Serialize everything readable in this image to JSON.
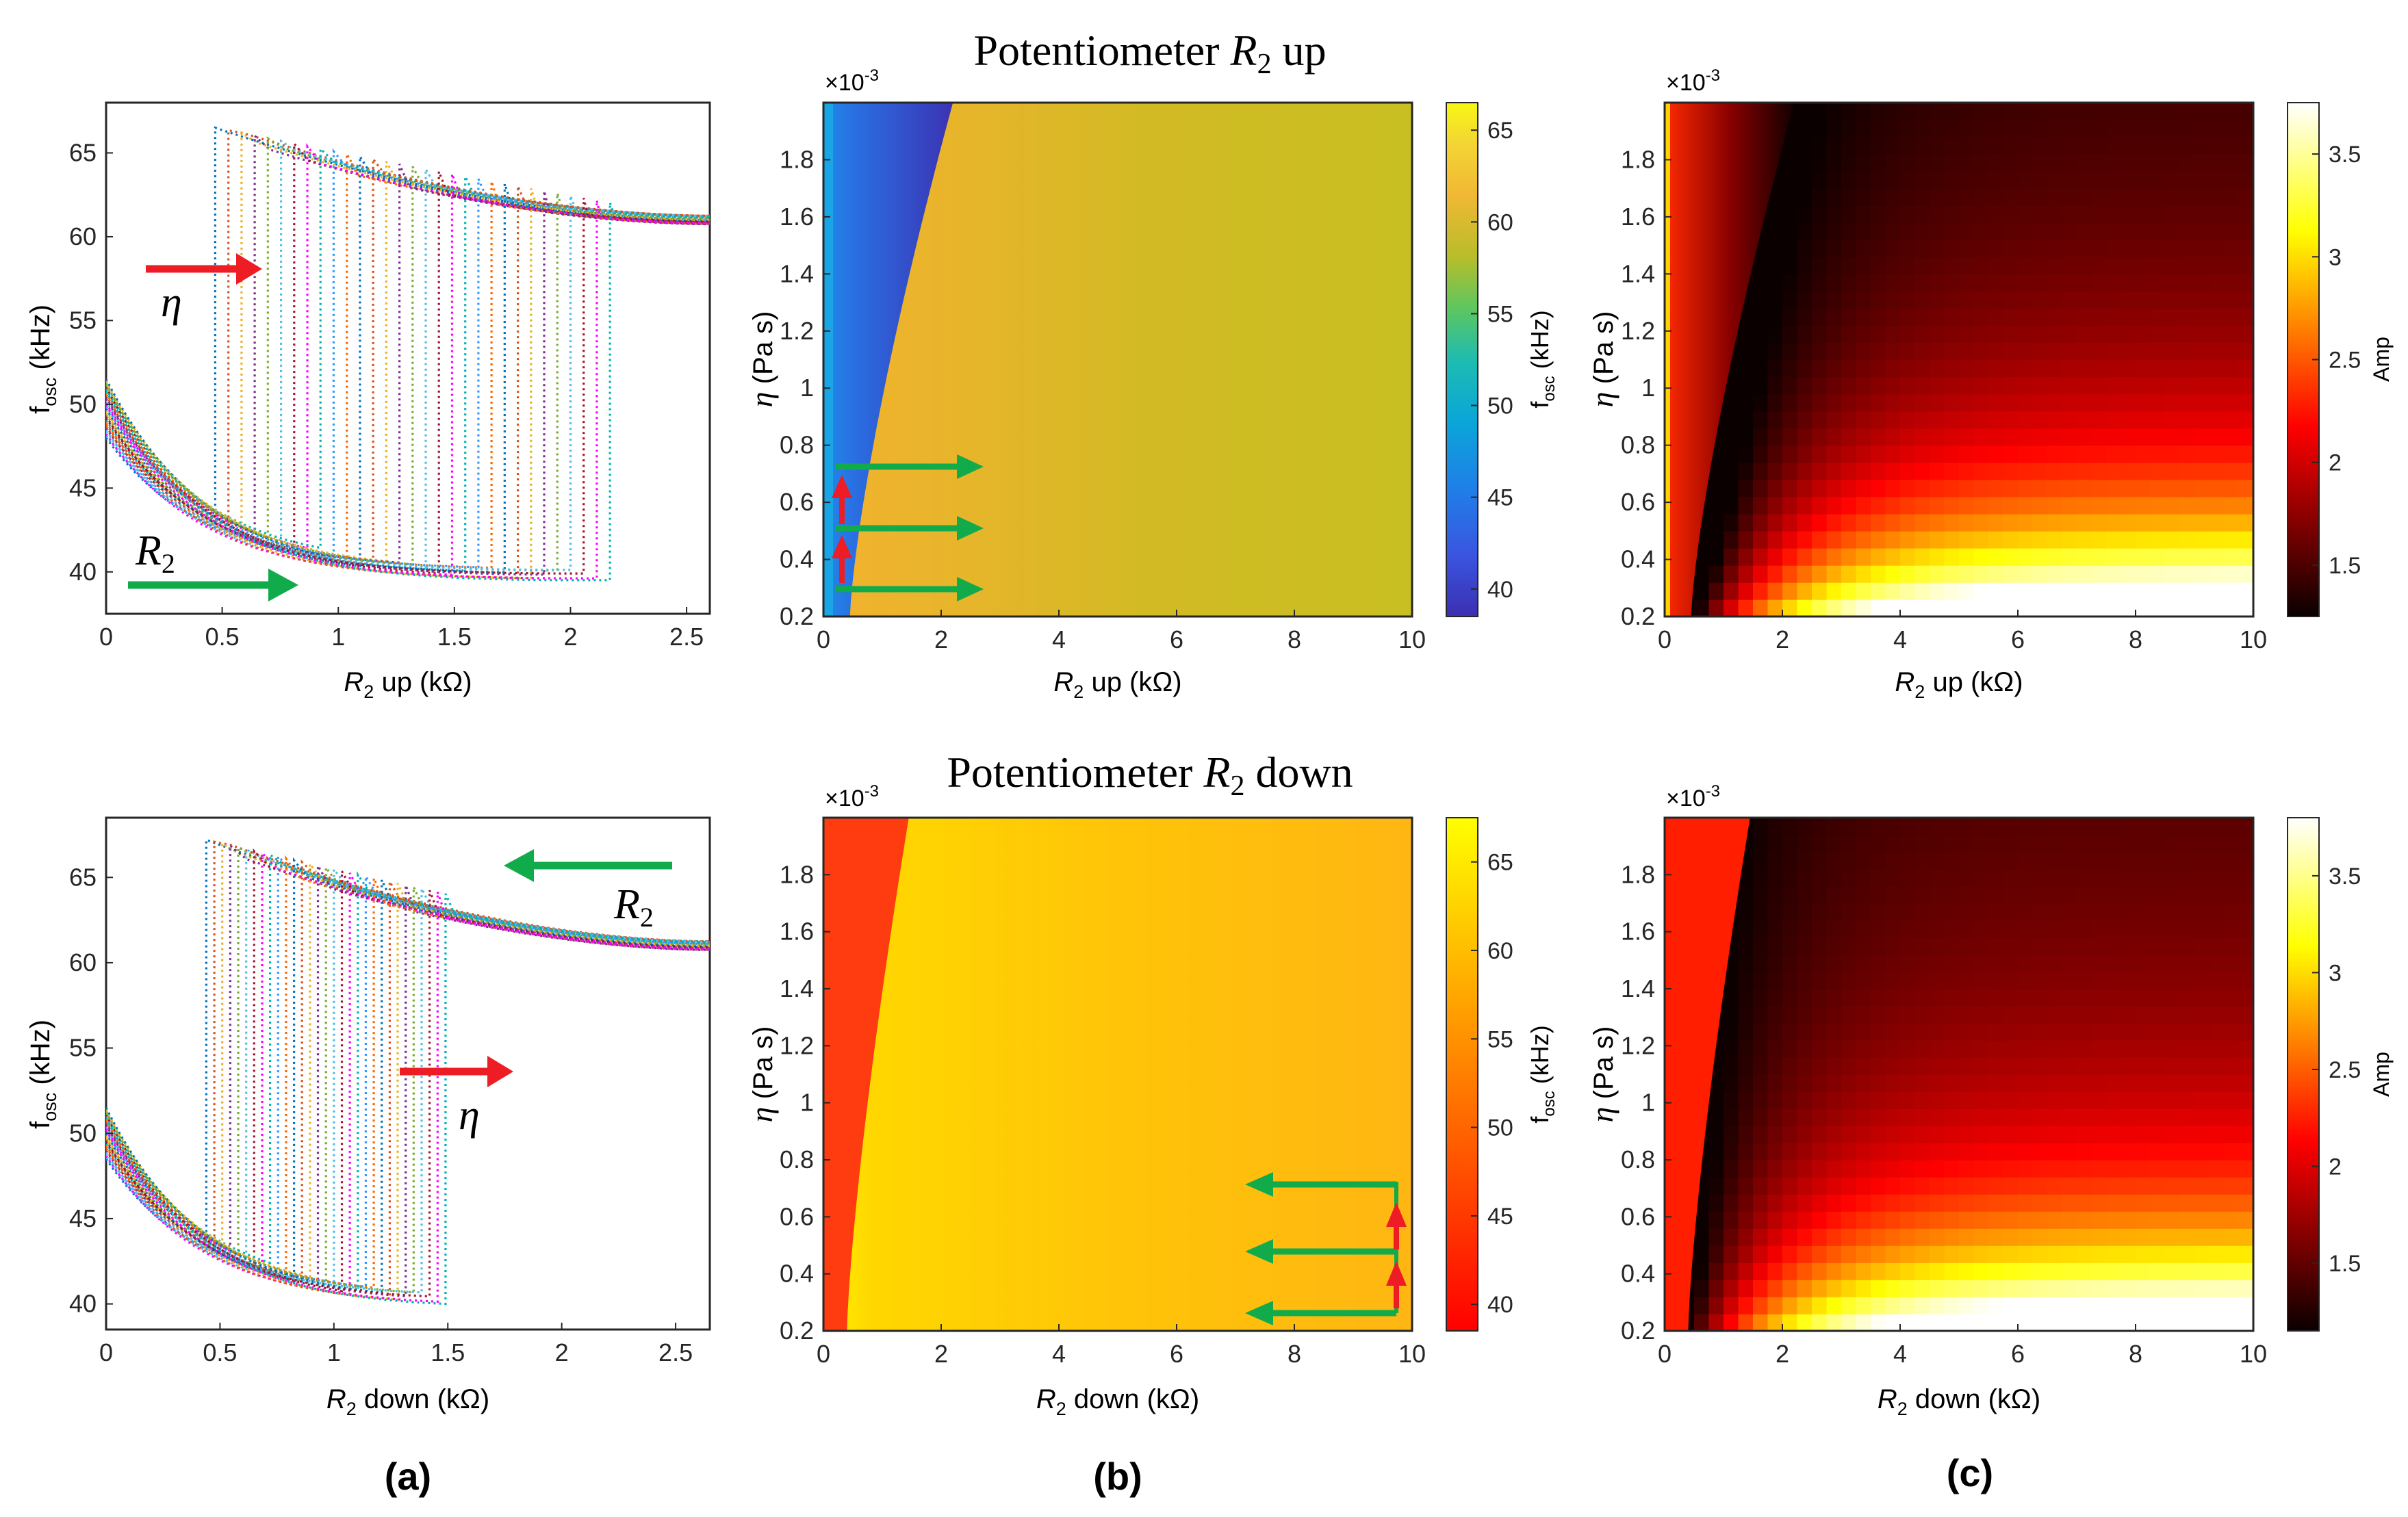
{
  "chart_data": {
    "titles": {
      "top": {
        "pre": "Potentiometer ",
        "var": "R",
        "sub": "2",
        "post": " up"
      },
      "bottom": {
        "pre": "Potentiometer ",
        "var": "R",
        "sub": "2",
        "post": " down"
      }
    },
    "panel_labels": [
      "(a)",
      "(b)",
      "(c)"
    ],
    "exponent_label": "×10",
    "exponent_power": "-3",
    "ylabel_a": {
      "main": "f",
      "sub": "osc",
      "post": " (kHz)"
    },
    "ylabel_eta": {
      "eta": "η",
      "post": " (Pa s)"
    },
    "colorbar_label_f": {
      "main": "f",
      "sub": "osc",
      "post": " (kHz)"
    },
    "colorbar_label_amp": "Amp",
    "xlabel_up": {
      "R": "R",
      "sub": "2",
      "post": " up (kΩ)"
    },
    "xlabel_down": {
      "R": "R",
      "sub": "2",
      "post": " down (kΩ)"
    },
    "annotations": {
      "eta": "η",
      "r2": "R",
      "r2_sub": "2"
    },
    "freq_plot_up": {
      "type": "line",
      "xlim": [
        0,
        2.6
      ],
      "ylim": [
        37.5,
        68
      ],
      "xticks": [
        0,
        0.5,
        1,
        1.5,
        2,
        2.5
      ],
      "xtick_labels": [
        "0",
        "0.5",
        "1",
        "1.5",
        "2",
        "2.5"
      ],
      "yticks": [
        40,
        45,
        50,
        55,
        60,
        65
      ],
      "ytick_labels": [
        "40",
        "45",
        "50",
        "55",
        "60",
        "65"
      ],
      "n_curves": 31,
      "jump_r2_range": [
        0.47,
        2.17
      ],
      "lower_branch_start_khz": [
        48.0,
        51.5
      ],
      "lower_branch_end_khz": 39.8,
      "upper_branch_peak_khz": 66.5,
      "upper_branch_end_khz": 61.0
    },
    "freq_plot_down": {
      "type": "line",
      "xlim": [
        0,
        2.65
      ],
      "ylim": [
        38.5,
        68.5
      ],
      "xticks": [
        0,
        0.5,
        1,
        1.5,
        2,
        2.5
      ],
      "xtick_labels": [
        "0",
        "0.5",
        "1",
        "1.5",
        "2",
        "2.5"
      ],
      "yticks": [
        40,
        45,
        50,
        55,
        60,
        65
      ],
      "ytick_labels": [
        "40",
        "45",
        "50",
        "55",
        "60",
        "65"
      ],
      "n_curves": 31,
      "jump_r2_range": [
        0.44,
        1.49
      ],
      "lower_branch_start_khz": [
        48.5,
        51.5
      ],
      "lower_branch_end_khz": 40.3,
      "upper_branch_peak_khz": 67.2,
      "upper_branch_end_khz": 61.0
    },
    "freq_map_up": {
      "type": "heatmap",
      "xlim": [
        0,
        10
      ],
      "ylim": [
        0.0002,
        0.002
      ],
      "xticks": [
        0,
        2,
        4,
        6,
        8,
        10
      ],
      "xtick_labels": [
        "0",
        "2",
        "4",
        "6",
        "8",
        "10"
      ],
      "yticks": [
        0.2,
        0.4,
        0.6,
        0.8,
        1,
        1.2,
        1.4,
        1.6,
        1.8
      ],
      "ytick_labels": [
        "0.2",
        "0.4",
        "0.6",
        "0.8",
        "1",
        "1.2",
        "1.4",
        "1.6",
        "1.8"
      ],
      "clim": [
        38.5,
        66.5
      ],
      "cticks": [
        40,
        45,
        50,
        55,
        60,
        65
      ],
      "ctick_labels": [
        "40",
        "45",
        "50",
        "55",
        "60",
        "65"
      ],
      "colormap": "parula",
      "boundary_r2_at_eta_min": 0.45,
      "boundary_r2_at_eta_max": 2.2
    },
    "freq_map_down": {
      "type": "heatmap",
      "xlim": [
        0,
        10
      ],
      "ylim": [
        0.0002,
        0.002
      ],
      "xticks": [
        0,
        2,
        4,
        6,
        8,
        10
      ],
      "xtick_labels": [
        "0",
        "2",
        "4",
        "6",
        "8",
        "10"
      ],
      "yticks": [
        0.2,
        0.4,
        0.6,
        0.8,
        1,
        1.2,
        1.4,
        1.6,
        1.8
      ],
      "ytick_labels": [
        "0.2",
        "0.4",
        "0.6",
        "0.8",
        "1",
        "1.2",
        "1.4",
        "1.6",
        "1.8"
      ],
      "clim": [
        38.5,
        67.5
      ],
      "cticks": [
        40,
        45,
        50,
        55,
        60,
        65
      ],
      "ctick_labels": [
        "40",
        "45",
        "50",
        "55",
        "60",
        "65"
      ],
      "colormap": "autumn",
      "boundary_r2_at_eta_min": 0.4,
      "boundary_r2_at_eta_max": 1.45
    },
    "amp_map_up": {
      "type": "heatmap",
      "xlim": [
        0,
        10
      ],
      "ylim": [
        0.0002,
        0.002
      ],
      "xticks": [
        0,
        2,
        4,
        6,
        8,
        10
      ],
      "xtick_labels": [
        "0",
        "2",
        "4",
        "6",
        "8",
        "10"
      ],
      "yticks": [
        0.2,
        0.4,
        0.6,
        0.8,
        1,
        1.2,
        1.4,
        1.6,
        1.8
      ],
      "ytick_labels": [
        "0.2",
        "0.4",
        "0.6",
        "0.8",
        "1",
        "1.2",
        "1.4",
        "1.6",
        "1.8"
      ],
      "clim": [
        1.25,
        3.75
      ],
      "cticks": [
        1.5,
        2,
        2.5,
        3,
        3.5
      ],
      "ctick_labels": [
        "1.5",
        "2",
        "2.5",
        "3",
        "3.5"
      ],
      "colormap": "hot",
      "boundary_r2_at_eta_min": 0.45,
      "boundary_r2_at_eta_max": 2.2
    },
    "amp_map_down": {
      "type": "heatmap",
      "xlim": [
        0,
        10
      ],
      "ylim": [
        0.0002,
        0.002
      ],
      "xticks": [
        0,
        2,
        4,
        6,
        8,
        10
      ],
      "xtick_labels": [
        "0",
        "2",
        "4",
        "6",
        "8",
        "10"
      ],
      "yticks": [
        0.2,
        0.4,
        0.6,
        0.8,
        1,
        1.2,
        1.4,
        1.6,
        1.8
      ],
      "ytick_labels": [
        "0.2",
        "0.4",
        "0.6",
        "0.8",
        "1",
        "1.2",
        "1.4",
        "1.6",
        "1.8"
      ],
      "clim": [
        1.15,
        3.8
      ],
      "cticks": [
        1.5,
        2,
        2.5,
        3,
        3.5
      ],
      "ctick_labels": [
        "1.5",
        "2",
        "2.5",
        "3",
        "3.5"
      ],
      "colormap": "hot",
      "boundary_r2_at_eta_min": 0.4,
      "boundary_r2_at_eta_max": 1.45
    }
  }
}
